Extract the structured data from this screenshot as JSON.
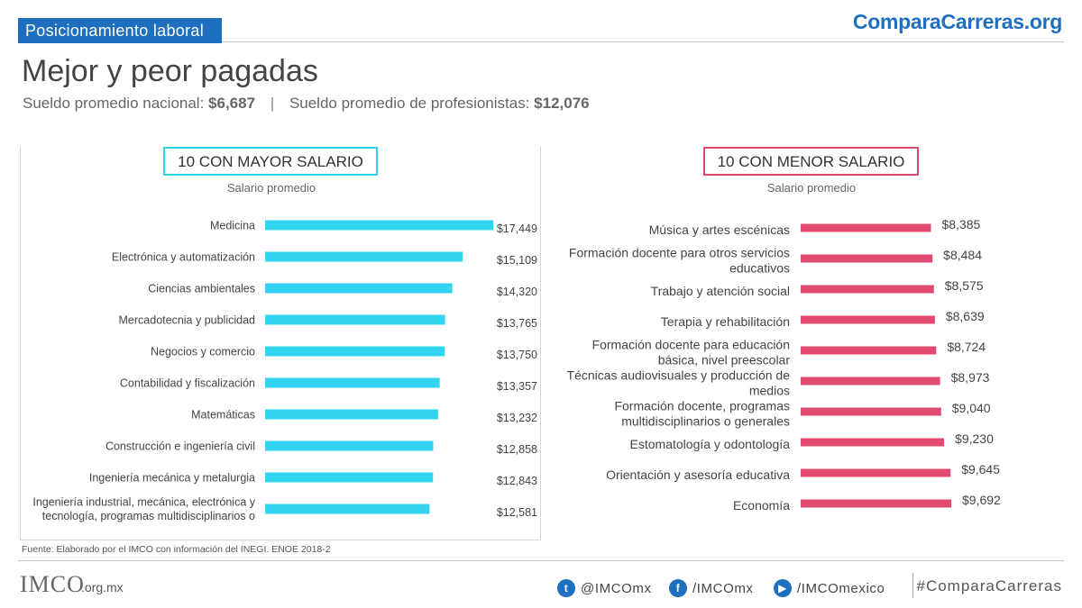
{
  "header": {
    "badge": "Posicionamiento laboral",
    "brand_c": "C",
    "brand_rest": "omparaCarreras.org"
  },
  "title": "Mejor y peor pagadas",
  "subtitle": {
    "national_label": "Sueldo promedio nacional:",
    "national_value": "$6,687",
    "separator": "|",
    "prof_label": "Sueldo promedio de profesionistas:",
    "prof_value": "$12,076"
  },
  "colors": {
    "cyan": "#33d4ef",
    "pink": "#e2496f",
    "brand_blue": "#1f6fbf"
  },
  "chart_data": [
    {
      "type": "bar",
      "orientation": "horizontal",
      "title": "10 CON MAYOR SALARIO",
      "xlabel": "Salario promedio",
      "color": "#33d4ef",
      "xlim": [
        0,
        17449
      ],
      "categories": [
        "Medicina",
        "Electrónica y automatización",
        "Ciencias ambientales",
        "Mercadotecnia y publicidad",
        "Negocios y comercio",
        "Contabilidad y fiscalización",
        "Matemáticas",
        "Construcción e ingeniería civil",
        "Ingeniería mecánica y metalurgia",
        "Ingeniería industrial, mecánica, electrónica y tecnología, programas multidisciplinarios o"
      ],
      "values": [
        17449,
        15109,
        14320,
        13765,
        13750,
        13357,
        13232,
        12858,
        12843,
        12581
      ],
      "value_labels": [
        "$17,449",
        "$15,109",
        "$14,320",
        "$13,765",
        "$13,750",
        "$13,357",
        "$13,232",
        "$12,858",
        "$12,843",
        "$12,581"
      ]
    },
    {
      "type": "bar",
      "orientation": "horizontal",
      "title": "10 CON MENOR SALARIO",
      "xlabel": "Salario promedio",
      "color": "#e2496f",
      "xlim": [
        0,
        9692
      ],
      "categories": [
        "Música y artes escénicas",
        "Formación docente para otros servicios educativos",
        "Trabajo y atención social",
        "Terapia y rehabilitación",
        "Formación docente para educación básica, nivel preescolar",
        "Técnicas audiovisuales y producción de medios",
        "Formación docente, programas multidisciplinarios o generales",
        "Estomatología y odontología",
        "Orientación y asesoría educativa",
        "Economía"
      ],
      "values": [
        8385,
        8484,
        8575,
        8639,
        8724,
        8973,
        9040,
        9230,
        9645,
        9692
      ],
      "value_labels": [
        "$8,385",
        "$8,484",
        "$8,575",
        "$8,639",
        "$8,724",
        "$8,973",
        "$9,040",
        "$9,230",
        "$9,645",
        "$9,692"
      ]
    }
  ],
  "footer": {
    "source": "Fuente: Elaborado por el IMCO con información del INEGI. ENOE 2018-2",
    "logo": "IMCO",
    "logo_suffix": ".org.mx",
    "twitter": "@IMCOmx",
    "facebook": "/IMCOmx",
    "youtube": "/IMCOmexico",
    "hashtag": "#ComparaCarreras"
  }
}
